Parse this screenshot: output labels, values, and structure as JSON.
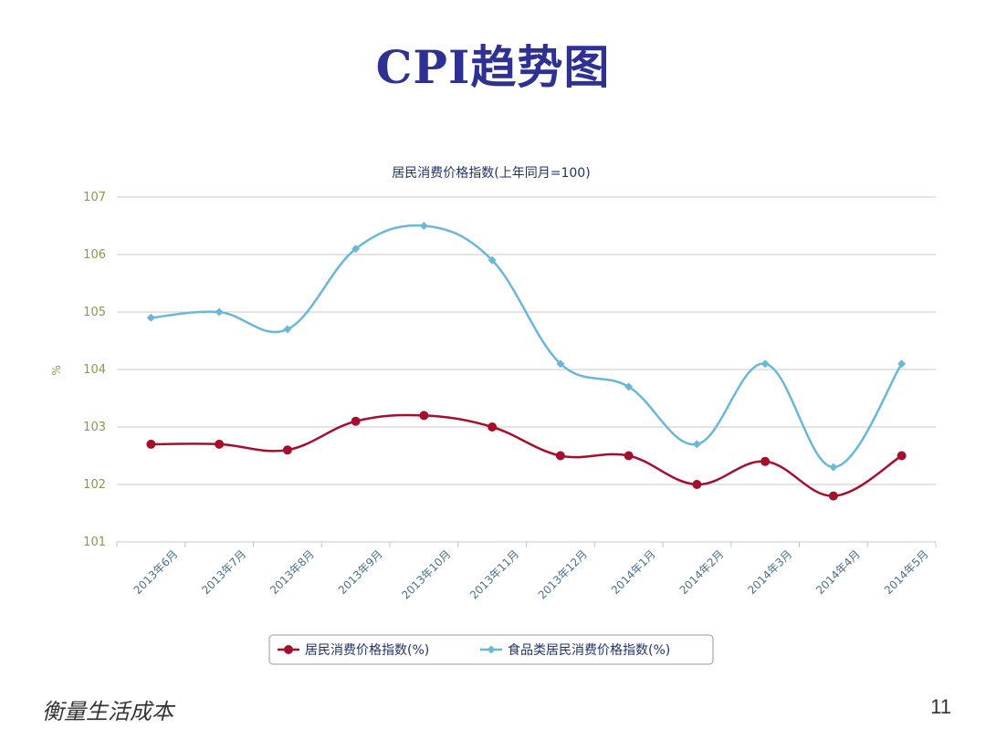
{
  "slide": {
    "title": "CPI趋势图",
    "footer": "衡量生活成本",
    "page_number": "11"
  },
  "chart_data": {
    "type": "line",
    "title": "居民消费价格指数(上年同月=100)",
    "ylabel": "%",
    "ylim": [
      101,
      107
    ],
    "yticks": [
      101,
      102,
      103,
      104,
      105,
      106,
      107
    ],
    "grid": true,
    "legend_position": "bottom",
    "categories": [
      "2013年6月",
      "2013年7月",
      "2013年8月",
      "2013年9月",
      "2013年10月",
      "2013年11月",
      "2013年12月",
      "2014年1月",
      "2014年2月",
      "2014年3月",
      "2014年4月",
      "2014年5月"
    ],
    "series": [
      {
        "name": "居民消费价格指数(%)",
        "color": "#a50f2d",
        "marker": "circle",
        "values": [
          102.7,
          102.7,
          102.6,
          103.1,
          103.2,
          103.0,
          102.5,
          102.5,
          102.0,
          102.4,
          101.8,
          102.5
        ]
      },
      {
        "name": "食品类居民消费价格指数(%)",
        "color": "#6ab8d8",
        "marker": "diamond",
        "values": [
          104.9,
          105.0,
          104.7,
          106.1,
          106.5,
          105.9,
          104.1,
          103.7,
          102.7,
          104.1,
          102.3,
          104.1
        ]
      }
    ]
  }
}
